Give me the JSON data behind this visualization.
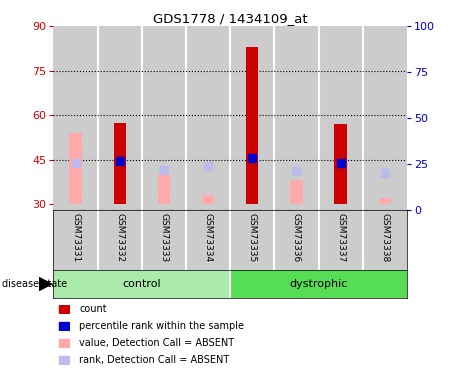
{
  "title": "GDS1778 / 1434109_at",
  "samples": [
    "GSM73331",
    "GSM73332",
    "GSM73333",
    "GSM73334",
    "GSM73335",
    "GSM73336",
    "GSM73337",
    "GSM73338"
  ],
  "ylim_left": [
    28,
    90
  ],
  "ylim_right": [
    0,
    100
  ],
  "yticks_left": [
    30,
    45,
    60,
    75,
    90
  ],
  "yticks_right": [
    0,
    25,
    50,
    75,
    100
  ],
  "bar_bottom": 30,
  "red_bars_top": [
    null,
    57.5,
    null,
    null,
    83,
    null,
    57,
    null
  ],
  "pink_bars_top": [
    54,
    null,
    40,
    33,
    null,
    38,
    null,
    32
  ],
  "blue_dots_y": [
    null,
    44.5,
    null,
    null,
    45.5,
    null,
    44,
    null
  ],
  "lilac_dots_y": [
    44,
    null,
    41.5,
    43,
    null,
    41,
    null,
    40.5
  ],
  "control_color": "#AAEAAA",
  "dystrophic_color": "#55DD55",
  "bar_bg_color": "#CCCCCC",
  "red_color": "#CC0000",
  "pink_color": "#FFAAAA",
  "blue_color": "#0000CC",
  "lilac_color": "#BBBBEE",
  "left_tick_color": "#CC0000",
  "right_tick_color": "#0000CC",
  "dotted_lines": [
    45,
    60,
    75
  ],
  "legend_items": [
    "count",
    "percentile rank within the sample",
    "value, Detection Call = ABSENT",
    "rank, Detection Call = ABSENT"
  ],
  "legend_colors": [
    "#CC0000",
    "#0000CC",
    "#FFAAAA",
    "#BBBBEE"
  ]
}
